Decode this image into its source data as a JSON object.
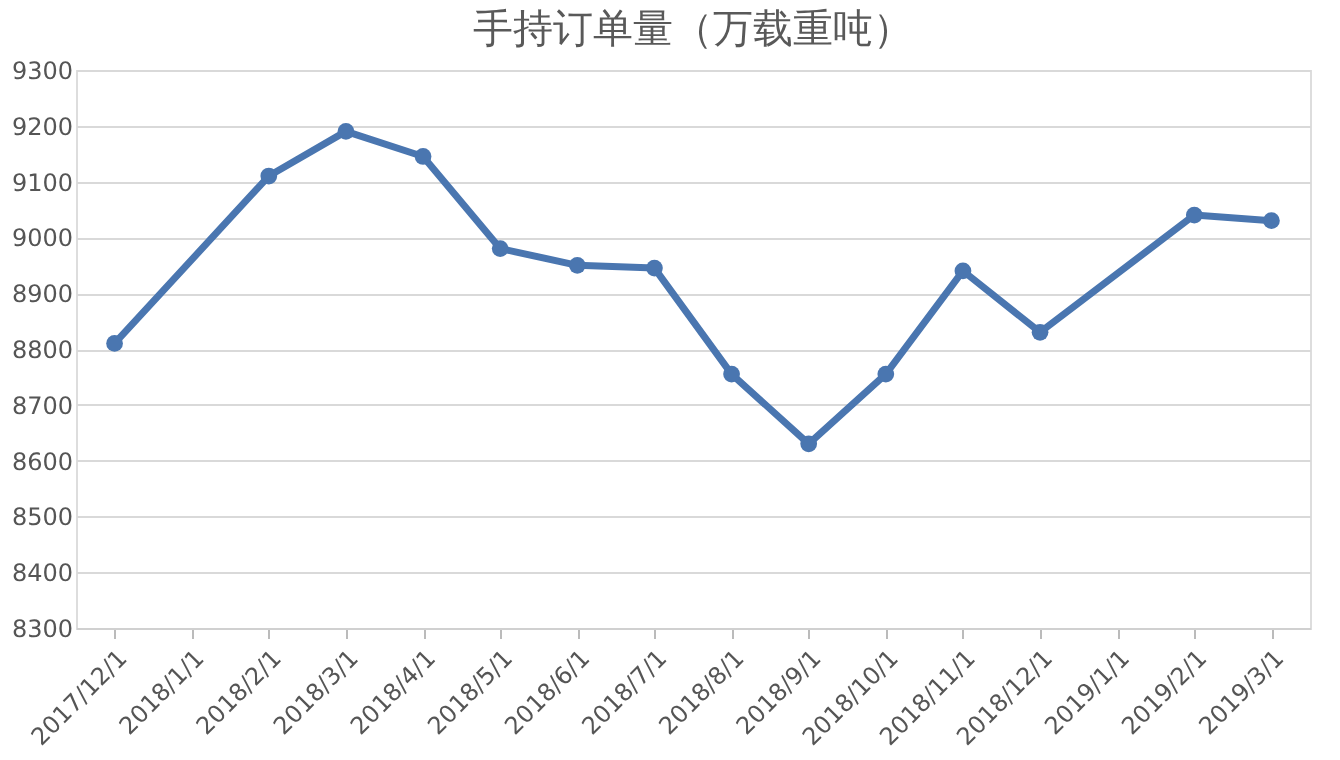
{
  "chart_data": {
    "type": "line",
    "title": "手持订单量（万载重吨）",
    "categories": [
      "2017/12/1",
      "2018/1/1",
      "2018/2/1",
      "2018/3/1",
      "2018/4/1",
      "2018/5/1",
      "2018/6/1",
      "2018/7/1",
      "2018/8/1",
      "2018/9/1",
      "2018/10/1",
      "2018/11/1",
      "2018/12/1",
      "2019/1/1",
      "2019/2/1",
      "2019/3/1"
    ],
    "series": [
      {
        "color": "#4a76b0",
        "values": [
          8810,
          null,
          9110,
          9190,
          9145,
          8980,
          8950,
          8945,
          8755,
          8630,
          8755,
          8940,
          8830,
          null,
          9040,
          9030
        ]
      }
    ],
    "ylim": [
      8300,
      9300
    ],
    "yticks": [
      8300,
      8400,
      8500,
      8600,
      8700,
      8800,
      8900,
      9000,
      9100,
      9200,
      9300
    ],
    "grid": "y",
    "marker": "circle",
    "line_style": "solid"
  }
}
